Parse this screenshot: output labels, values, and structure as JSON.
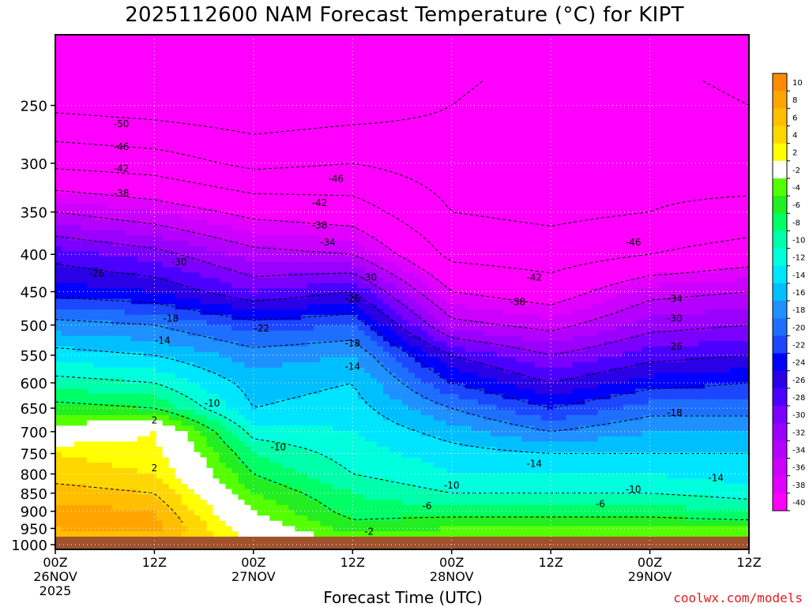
{
  "title": "2025112600 NAM Forecast Temperature (°C) for KIPT",
  "xlabel": "Forecast Time (UTC)",
  "credit": "coolwx.com/models",
  "chart_data": {
    "type": "heatmap",
    "title": "2025112600 NAM Forecast Temperature (°C) for KIPT",
    "xlabel": "Forecast Time (UTC)",
    "ylabel": "",
    "x_ticks": [
      {
        "label": "00Z",
        "date": "26NOV",
        "year": "2025",
        "hour": 0
      },
      {
        "label": "12Z",
        "date": "",
        "year": "",
        "hour": 12
      },
      {
        "label": "00Z",
        "date": "27NOV",
        "year": "",
        "hour": 24
      },
      {
        "label": "12Z",
        "date": "",
        "year": "",
        "hour": 36
      },
      {
        "label": "00Z",
        "date": "28NOV",
        "year": "",
        "hour": 48
      },
      {
        "label": "12Z",
        "date": "",
        "year": "",
        "hour": 60
      },
      {
        "label": "00Z",
        "date": "29NOV",
        "year": "",
        "hour": 72
      },
      {
        "label": "12Z",
        "date": "",
        "year": "",
        "hour": 84
      }
    ],
    "xlim": [
      0,
      84
    ],
    "y_ticks": [
      250,
      300,
      350,
      400,
      450,
      500,
      550,
      600,
      650,
      700,
      750,
      800,
      850,
      900,
      950,
      1000
    ],
    "ylim": [
      1000,
      200
    ],
    "y_scale": "log",
    "grid": true,
    "legend_position": "right",
    "colorbar": {
      "levels": [
        10,
        8,
        6,
        4,
        2,
        -2,
        -4,
        -6,
        -8,
        -10,
        -12,
        -14,
        -16,
        -18,
        -20,
        -22,
        -24,
        -26,
        -28,
        -30,
        -32,
        -34,
        -36,
        -38,
        -40
      ],
      "colors": [
        "#ff8c00",
        "#ffa500",
        "#ffbf00",
        "#ffd700",
        "#ffff00",
        "#ffffff",
        "#55ff00",
        "#22ee22",
        "#00ff66",
        "#00ffaa",
        "#00ffdd",
        "#00e5ff",
        "#00bfff",
        "#1e90ff",
        "#1f6fff",
        "#1c47ff",
        "#0000ff",
        "#2a00e6",
        "#4b00ff",
        "#7a00ff",
        "#9900ff",
        "#b300ff",
        "#cc00ff",
        "#e000ff",
        "#ff00ff"
      ]
    },
    "temperature_profiles": [
      {
        "hour": 0,
        "p": [
          1000,
          950,
          900,
          850,
          800,
          750,
          700,
          650,
          600,
          550,
          500,
          450,
          400,
          350,
          300,
          250
        ],
        "t": [
          6,
          8,
          9,
          7,
          5,
          4,
          -1,
          -5,
          -9,
          -13,
          -17,
          -23,
          -27,
          -34,
          -43,
          -51
        ]
      },
      {
        "hour": 12,
        "p": [
          1000,
          950,
          900,
          850,
          800,
          750,
          700,
          650,
          600,
          550,
          500,
          450,
          400,
          350,
          300,
          250
        ],
        "t": [
          6,
          9,
          8,
          6,
          4,
          3,
          2,
          -6,
          -10,
          -14,
          -18,
          -24,
          -29,
          -36,
          -44,
          -52
        ]
      },
      {
        "hour": 24,
        "p": [
          1000,
          950,
          900,
          850,
          800,
          750,
          700,
          650,
          600,
          550,
          500,
          450,
          400,
          350,
          300,
          250
        ],
        "t": [
          3,
          0,
          -2,
          -4,
          -6,
          -8,
          -11,
          -14,
          -15,
          -17,
          -21,
          -28,
          -33,
          -39,
          -47,
          -53
        ]
      },
      {
        "hour": 36,
        "p": [
          1000,
          950,
          900,
          850,
          800,
          750,
          700,
          650,
          600,
          550,
          500,
          450,
          400,
          350,
          300,
          250
        ],
        "t": [
          -2,
          -5,
          -7,
          -8,
          -10,
          -11,
          -12,
          -13,
          -14,
          -16,
          -20,
          -26,
          -34,
          -40,
          -46,
          -52
        ]
      },
      {
        "hour": 48,
        "p": [
          1000,
          950,
          900,
          850,
          800,
          750,
          700,
          650,
          600,
          550,
          500,
          450,
          400,
          350,
          300,
          250
        ],
        "t": [
          1,
          -4,
          -7,
          -10,
          -12,
          -13,
          -15,
          -18,
          -22,
          -26,
          -33,
          -38,
          -43,
          -46,
          -48,
          -50
        ]
      },
      {
        "hour": 60,
        "p": [
          1000,
          950,
          900,
          850,
          800,
          750,
          700,
          650,
          600,
          550,
          500,
          450,
          400,
          350,
          300,
          250
        ],
        "t": [
          -1,
          -4,
          -7,
          -10,
          -12,
          -14,
          -18,
          -22,
          -26,
          -30,
          -35,
          -40,
          -44,
          -47,
          -48,
          -47
        ]
      },
      {
        "hour": 72,
        "p": [
          1000,
          950,
          900,
          850,
          800,
          750,
          700,
          650,
          600,
          550,
          500,
          450,
          400,
          350,
          300,
          250
        ],
        "t": [
          0,
          -4,
          -7,
          -10,
          -12,
          -14,
          -16,
          -19,
          -23,
          -27,
          -31,
          -35,
          -42,
          -46,
          -47,
          -48
        ]
      },
      {
        "hour": 84,
        "p": [
          1000,
          950,
          900,
          850,
          800,
          750,
          700,
          650,
          600,
          550,
          500,
          450,
          400,
          350,
          300,
          250
        ],
        "t": [
          -1,
          -4,
          -8,
          -11,
          -13,
          -14,
          -16,
          -19,
          -22,
          -26,
          -30,
          -34,
          -40,
          -45,
          -48,
          -50
        ]
      }
    ],
    "contour_labels": [
      {
        "text": "-50",
        "hour": 8,
        "p": 265
      },
      {
        "text": "-46",
        "hour": 8,
        "p": 285
      },
      {
        "text": "-42",
        "hour": 8,
        "p": 305
      },
      {
        "text": "-38",
        "hour": 8,
        "p": 330
      },
      {
        "text": "-26",
        "hour": 5,
        "p": 425
      },
      {
        "text": "-30",
        "hour": 15,
        "p": 410
      },
      {
        "text": "-18",
        "hour": 14,
        "p": 490
      },
      {
        "text": "-14",
        "hour": 13,
        "p": 525
      },
      {
        "text": "-22",
        "hour": 25,
        "p": 505
      },
      {
        "text": "-10",
        "hour": 19,
        "p": 640
      },
      {
        "text": "2",
        "hour": 12,
        "p": 675
      },
      {
        "text": "2",
        "hour": 12,
        "p": 785
      },
      {
        "text": "-10",
        "hour": 27,
        "p": 735
      },
      {
        "text": "-46",
        "hour": 34,
        "p": 315
      },
      {
        "text": "-42",
        "hour": 32,
        "p": 340
      },
      {
        "text": "-38",
        "hour": 32,
        "p": 365
      },
      {
        "text": "-34",
        "hour": 33,
        "p": 385
      },
      {
        "text": "-30",
        "hour": 38,
        "p": 430
      },
      {
        "text": "-26",
        "hour": 36,
        "p": 460
      },
      {
        "text": "-18",
        "hour": 36,
        "p": 530
      },
      {
        "text": "-14",
        "hour": 36,
        "p": 570
      },
      {
        "text": "-6",
        "hour": 45,
        "p": 885
      },
      {
        "text": "-10",
        "hour": 48,
        "p": 830
      },
      {
        "text": "-2",
        "hour": 38,
        "p": 960
      },
      {
        "text": "-46",
        "hour": 70,
        "p": 385
      },
      {
        "text": "-42",
        "hour": 58,
        "p": 430
      },
      {
        "text": "-38",
        "hour": 56,
        "p": 465
      },
      {
        "text": "-34",
        "hour": 75,
        "p": 460
      },
      {
        "text": "-30",
        "hour": 75,
        "p": 490
      },
      {
        "text": "-26",
        "hour": 75,
        "p": 535
      },
      {
        "text": "-18",
        "hour": 75,
        "p": 660
      },
      {
        "text": "-14",
        "hour": 58,
        "p": 775
      },
      {
        "text": "-14",
        "hour": 80,
        "p": 810
      },
      {
        "text": "-10",
        "hour": 70,
        "p": 840
      },
      {
        "text": "-6",
        "hour": 66,
        "p": 880
      }
    ]
  }
}
